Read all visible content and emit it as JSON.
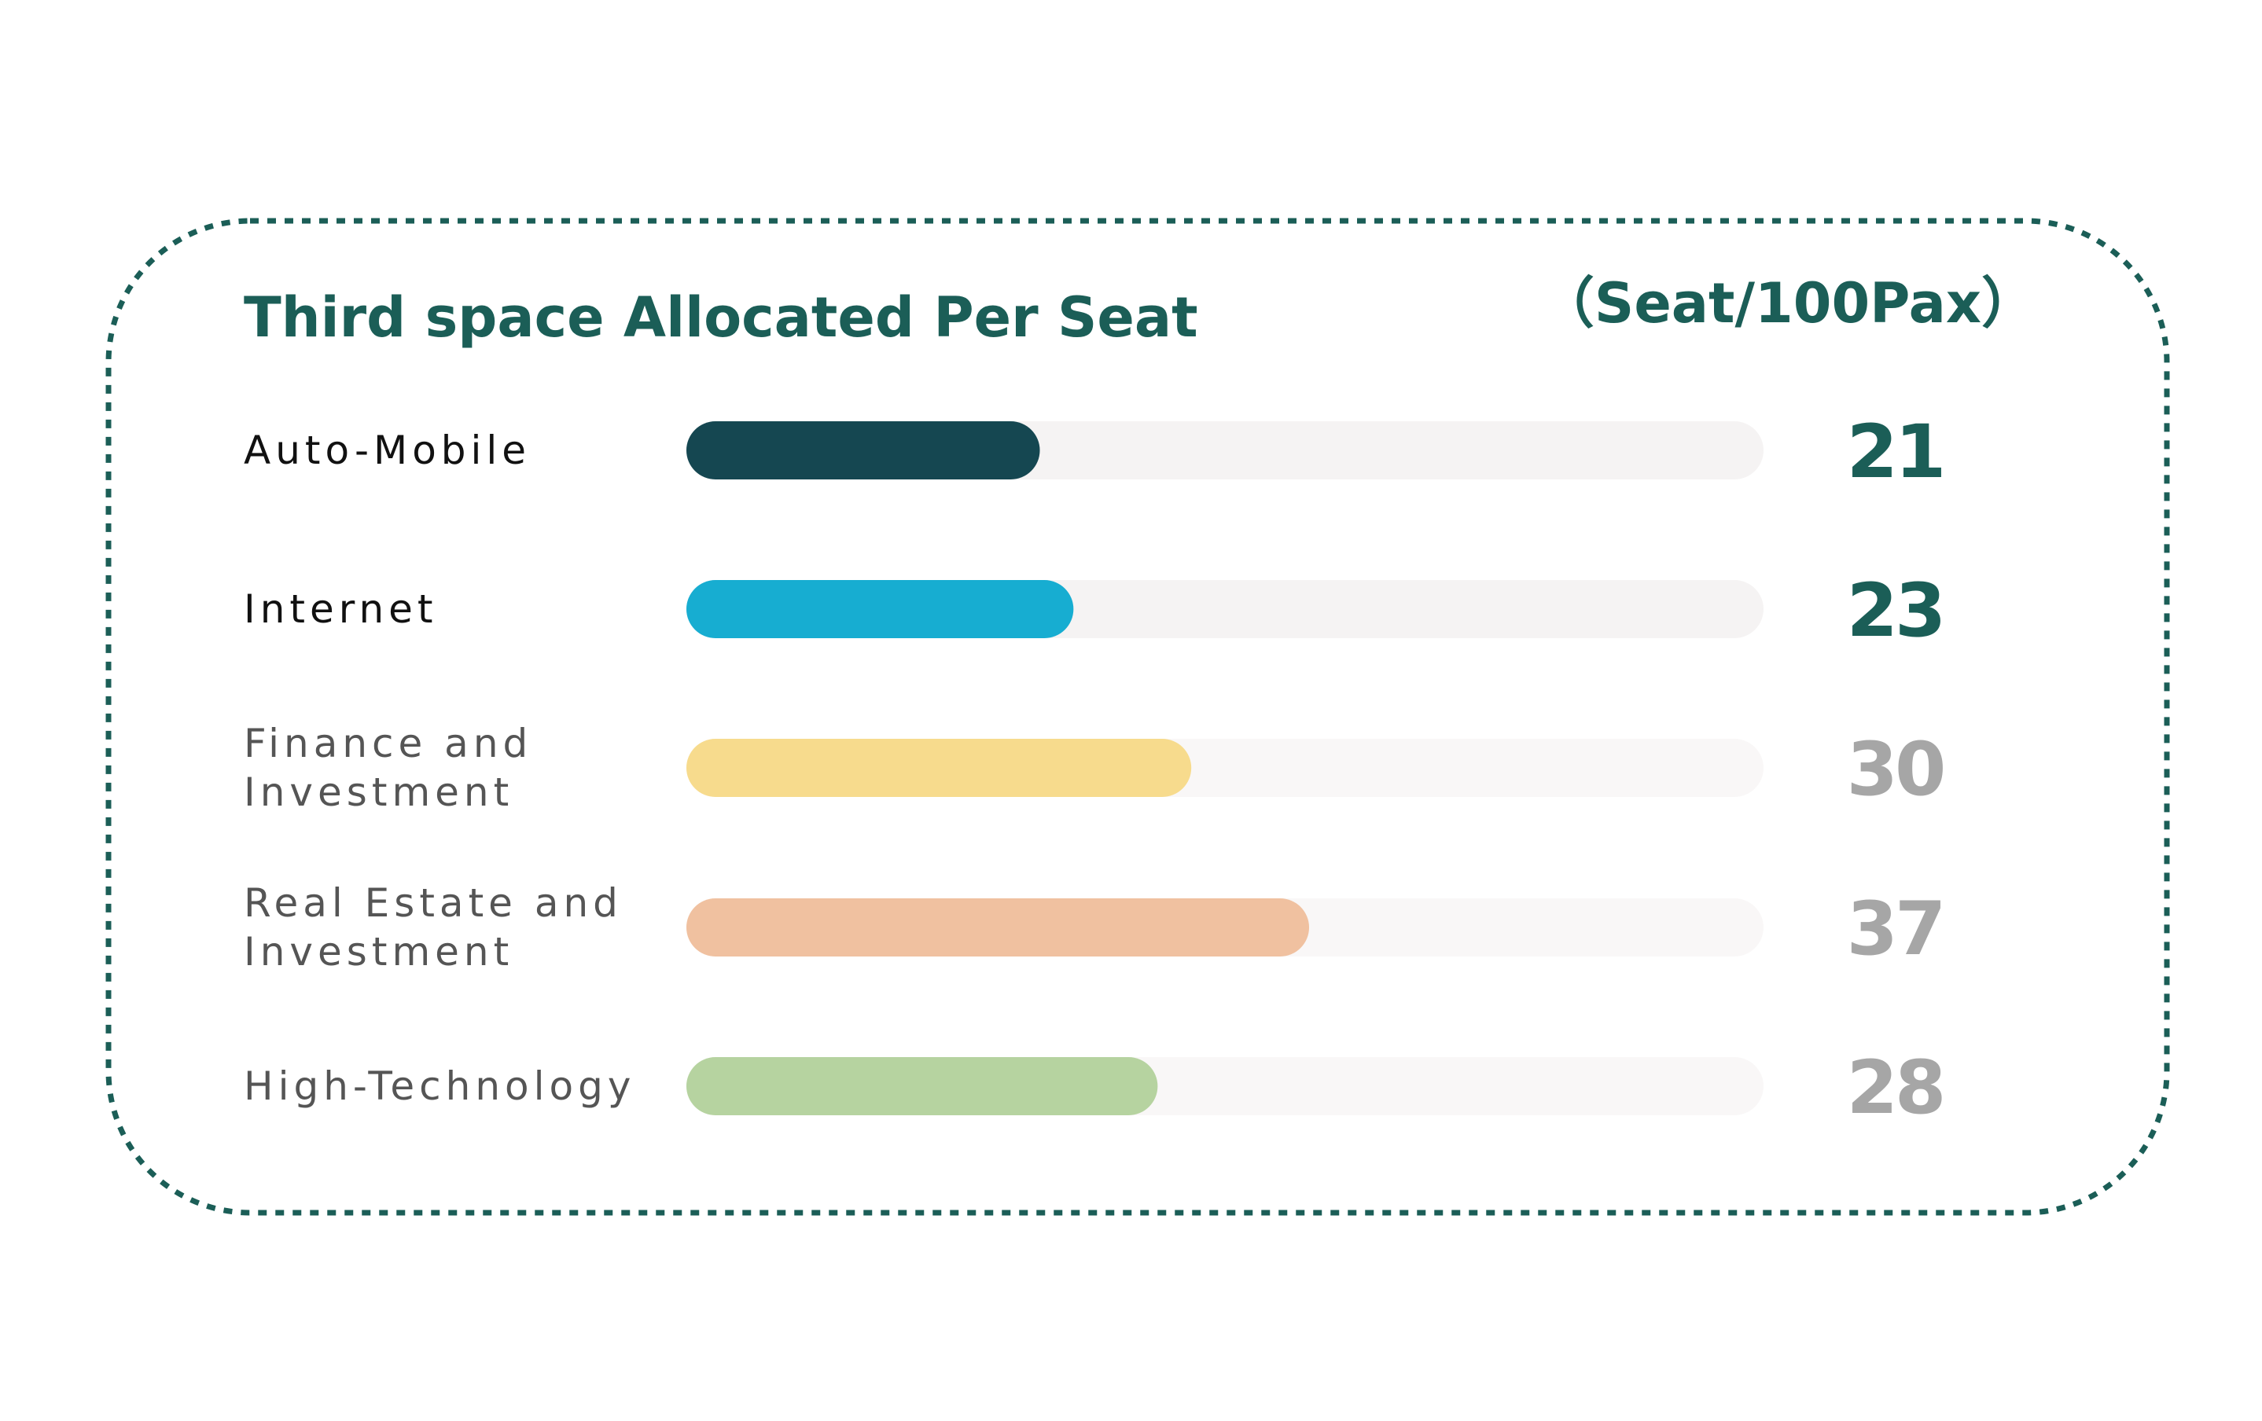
{
  "chart_data": {
    "type": "bar",
    "orientation": "horizontal",
    "title": "Third space Allocated Per Seat",
    "unit": "（Seat/100Pax）",
    "categories": [
      [
        "Auto-Mobile"
      ],
      [
        "Internet"
      ],
      [
        "Finance and",
        "Investment"
      ],
      [
        "Real Estate and",
        "Investment"
      ],
      [
        "High-Technology"
      ]
    ],
    "values": [
      21,
      23,
      30,
      37,
      28
    ],
    "value_labels": [
      "21",
      "23",
      "30",
      "37",
      "28"
    ],
    "xlim": [
      0,
      64
    ],
    "grid": false,
    "legend": "none"
  },
  "colors": {
    "title": "#1B5E57",
    "border": "#1B5E57",
    "track_dark": "#F5F3F3",
    "track_light": "#F9F7F7",
    "bars": [
      "#154751",
      "#17ADD1",
      "#F7DB8D",
      "#F0C1A0",
      "#B6D3A0"
    ],
    "labels": [
      "#111111",
      "#111111",
      "#555555",
      "#555555",
      "#555555"
    ],
    "value_colors": [
      "#1B5E57",
      "#1B5E57",
      "#A6A6A6",
      "#A6A6A6",
      "#A6A6A6"
    ]
  }
}
